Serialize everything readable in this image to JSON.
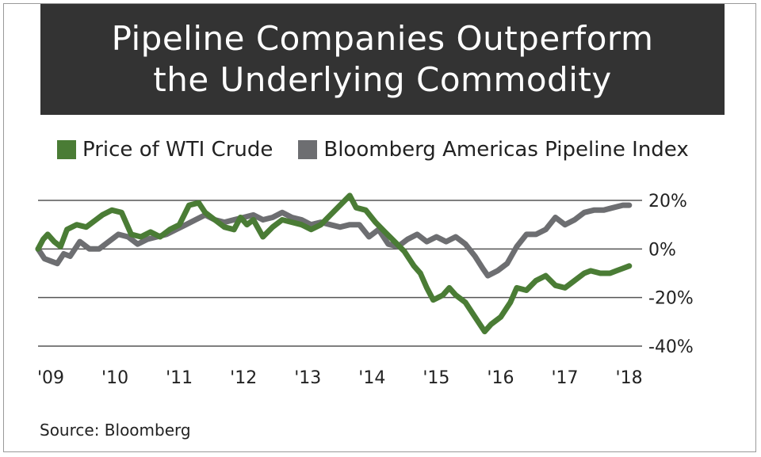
{
  "title": {
    "line1": "Pipeline Companies Outperform",
    "line2": "the Underlying Commodity"
  },
  "source": "Source: Bloomberg",
  "chart_data": {
    "type": "line",
    "ylim": [
      -40,
      20
    ],
    "yticks": [
      20,
      0,
      -20,
      -40
    ],
    "ytick_labels": [
      "20%",
      "0%",
      "-20%",
      "-40%"
    ],
    "xlim": [
      2009.0,
      2018.4
    ],
    "xticks": [
      2009,
      2010,
      2011,
      2012,
      2013,
      2014,
      2015,
      2016,
      2017,
      2018
    ],
    "xtick_labels": [
      "'09",
      "'10",
      "'11",
      "'12",
      "'13",
      "'14",
      "'15",
      "'16",
      "'17",
      "'18"
    ],
    "series": [
      {
        "name": "Price of WTI Crude",
        "color": "#4a7c35",
        "points": [
          [
            2009.0,
            0
          ],
          [
            2009.08,
            4
          ],
          [
            2009.15,
            6
          ],
          [
            2009.25,
            3
          ],
          [
            2009.35,
            1
          ],
          [
            2009.45,
            8
          ],
          [
            2009.6,
            10
          ],
          [
            2009.75,
            9
          ],
          [
            2009.9,
            12
          ],
          [
            2010.0,
            14
          ],
          [
            2010.15,
            16
          ],
          [
            2010.3,
            15
          ],
          [
            2010.45,
            6
          ],
          [
            2010.6,
            5
          ],
          [
            2010.75,
            7
          ],
          [
            2010.9,
            5
          ],
          [
            2011.05,
            8
          ],
          [
            2011.2,
            10
          ],
          [
            2011.35,
            18
          ],
          [
            2011.5,
            19
          ],
          [
            2011.6,
            15
          ],
          [
            2011.75,
            12
          ],
          [
            2011.9,
            9
          ],
          [
            2012.05,
            8
          ],
          [
            2012.15,
            13
          ],
          [
            2012.25,
            10
          ],
          [
            2012.35,
            12
          ],
          [
            2012.5,
            5
          ],
          [
            2012.65,
            9
          ],
          [
            2012.8,
            12
          ],
          [
            2012.95,
            11
          ],
          [
            2013.1,
            10
          ],
          [
            2013.25,
            8
          ],
          [
            2013.4,
            10
          ],
          [
            2013.55,
            14
          ],
          [
            2013.7,
            18
          ],
          [
            2013.85,
            22
          ],
          [
            2013.95,
            17
          ],
          [
            2014.1,
            16
          ],
          [
            2014.25,
            11
          ],
          [
            2014.4,
            7
          ],
          [
            2014.55,
            3
          ],
          [
            2014.7,
            -1
          ],
          [
            2014.85,
            -7
          ],
          [
            2014.95,
            -10
          ],
          [
            2015.05,
            -16
          ],
          [
            2015.15,
            -21
          ],
          [
            2015.3,
            -19
          ],
          [
            2015.4,
            -16
          ],
          [
            2015.5,
            -19
          ],
          [
            2015.65,
            -22
          ],
          [
            2015.8,
            -28
          ],
          [
            2015.95,
            -34
          ],
          [
            2016.05,
            -31
          ],
          [
            2016.2,
            -28
          ],
          [
            2016.35,
            -22
          ],
          [
            2016.45,
            -16
          ],
          [
            2016.6,
            -17
          ],
          [
            2016.75,
            -13
          ],
          [
            2016.9,
            -11
          ],
          [
            2017.05,
            -15
          ],
          [
            2017.2,
            -16
          ],
          [
            2017.35,
            -13
          ],
          [
            2017.5,
            -10
          ],
          [
            2017.6,
            -9
          ],
          [
            2017.75,
            -10
          ],
          [
            2017.9,
            -10
          ],
          [
            2018.0,
            -9
          ],
          [
            2018.1,
            -8
          ],
          [
            2018.2,
            -7
          ]
        ]
      },
      {
        "name": "Bloomberg Americas Pipeline Index",
        "color": "#6d6e71",
        "points": [
          [
            2009.0,
            0
          ],
          [
            2009.1,
            -4
          ],
          [
            2009.2,
            -5
          ],
          [
            2009.3,
            -6
          ],
          [
            2009.4,
            -2
          ],
          [
            2009.5,
            -3
          ],
          [
            2009.65,
            3
          ],
          [
            2009.8,
            0
          ],
          [
            2009.95,
            0
          ],
          [
            2010.1,
            3
          ],
          [
            2010.25,
            6
          ],
          [
            2010.4,
            5
          ],
          [
            2010.55,
            2
          ],
          [
            2010.7,
            4
          ],
          [
            2010.85,
            5
          ],
          [
            2011.0,
            6
          ],
          [
            2011.15,
            8
          ],
          [
            2011.3,
            10
          ],
          [
            2011.45,
            12
          ],
          [
            2011.6,
            14
          ],
          [
            2011.75,
            12
          ],
          [
            2011.9,
            11
          ],
          [
            2012.05,
            12
          ],
          [
            2012.2,
            13
          ],
          [
            2012.35,
            14
          ],
          [
            2012.5,
            12
          ],
          [
            2012.65,
            13
          ],
          [
            2012.8,
            15
          ],
          [
            2012.95,
            13
          ],
          [
            2013.1,
            12
          ],
          [
            2013.25,
            10
          ],
          [
            2013.4,
            11
          ],
          [
            2013.55,
            10
          ],
          [
            2013.7,
            9
          ],
          [
            2013.85,
            10
          ],
          [
            2014.0,
            10
          ],
          [
            2014.15,
            5
          ],
          [
            2014.3,
            8
          ],
          [
            2014.45,
            2
          ],
          [
            2014.6,
            1
          ],
          [
            2014.75,
            4
          ],
          [
            2014.9,
            6
          ],
          [
            2015.05,
            3
          ],
          [
            2015.2,
            5
          ],
          [
            2015.35,
            3
          ],
          [
            2015.5,
            5
          ],
          [
            2015.65,
            2
          ],
          [
            2015.8,
            -3
          ],
          [
            2015.92,
            -8
          ],
          [
            2016.0,
            -11
          ],
          [
            2016.15,
            -9
          ],
          [
            2016.3,
            -6
          ],
          [
            2016.45,
            1
          ],
          [
            2016.6,
            6
          ],
          [
            2016.75,
            6
          ],
          [
            2016.9,
            8
          ],
          [
            2017.05,
            13
          ],
          [
            2017.2,
            10
          ],
          [
            2017.35,
            12
          ],
          [
            2017.5,
            15
          ],
          [
            2017.65,
            16
          ],
          [
            2017.8,
            16
          ],
          [
            2017.95,
            17
          ],
          [
            2018.1,
            18
          ],
          [
            2018.2,
            18
          ]
        ]
      }
    ]
  }
}
